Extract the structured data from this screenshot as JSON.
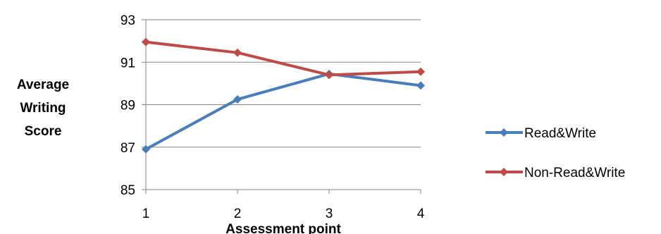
{
  "chart_data": {
    "type": "line",
    "title": "",
    "xlabel": "Assessment point",
    "ylabel_lines": [
      "Average",
      "Writing",
      "Score"
    ],
    "x": [
      1,
      2,
      3,
      4
    ],
    "ylim": [
      85,
      93
    ],
    "yticks": [
      85,
      87,
      89,
      91,
      93
    ],
    "grid": "horizontal",
    "legend_position": "right",
    "series": [
      {
        "name": "Read&Write",
        "values": [
          86.9,
          89.25,
          90.45,
          89.9
        ],
        "color": "#4a7ebb"
      },
      {
        "name": "Non-Read&Write",
        "values": [
          91.95,
          91.45,
          90.4,
          90.55
        ],
        "color": "#be4b48"
      }
    ]
  }
}
